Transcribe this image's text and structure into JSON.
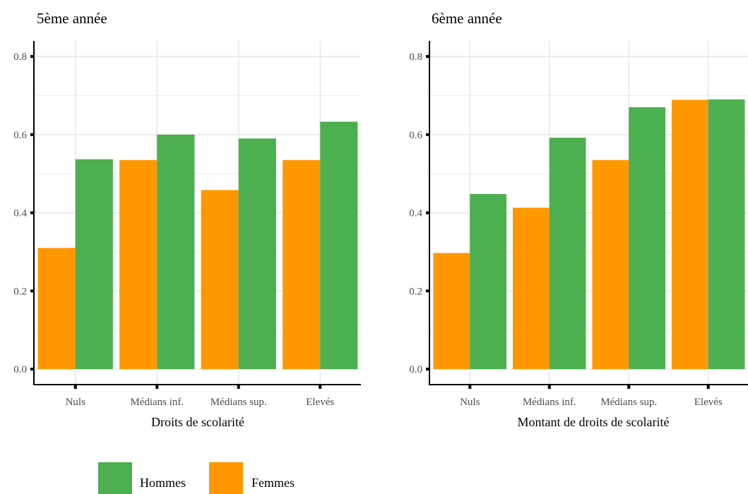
{
  "legend": {
    "items": [
      {
        "label": "Hommes",
        "color": "#4CAF50"
      },
      {
        "label": "Femmes",
        "color": "#FF9800"
      }
    ]
  },
  "chart_data": [
    {
      "type": "bar",
      "title": "5ème année",
      "xlabel": "Droits de scolarité",
      "ylabel": "",
      "ylim": [
        0,
        0.8
      ],
      "yticks": [
        0.0,
        0.2,
        0.4,
        0.6,
        0.8
      ],
      "ytick_labels": [
        "0.0",
        "0.2",
        "0.4",
        "0.6",
        "0.8"
      ],
      "categories": [
        "Nuls",
        "Médians inf.",
        "Médians sup.",
        "Elevés"
      ],
      "grid": true,
      "legend_position": "bottom",
      "series": [
        {
          "name": "Femmes",
          "color": "#FF9800",
          "values": [
            0.31,
            0.535,
            0.458,
            0.535
          ]
        },
        {
          "name": "Hommes",
          "color": "#4CAF50",
          "values": [
            0.537,
            0.6,
            0.59,
            0.633
          ]
        }
      ]
    },
    {
      "type": "bar",
      "title": "6ème année",
      "xlabel": "Montant de droits de scolarité",
      "ylabel": "",
      "ylim": [
        0,
        0.8
      ],
      "yticks": [
        0.0,
        0.2,
        0.4,
        0.6,
        0.8
      ],
      "ytick_labels": [
        "0.0",
        "0.2",
        "0.4",
        "0.6",
        "0.8"
      ],
      "categories": [
        "Nuls",
        "Médians inf.",
        "Médians sup.",
        "Elevés"
      ],
      "grid": true,
      "legend_position": "bottom",
      "series": [
        {
          "name": "Femmes",
          "color": "#FF9800",
          "values": [
            0.297,
            0.413,
            0.535,
            0.689
          ]
        },
        {
          "name": "Hommes",
          "color": "#4CAF50",
          "values": [
            0.448,
            0.592,
            0.67,
            0.69
          ]
        }
      ]
    }
  ]
}
